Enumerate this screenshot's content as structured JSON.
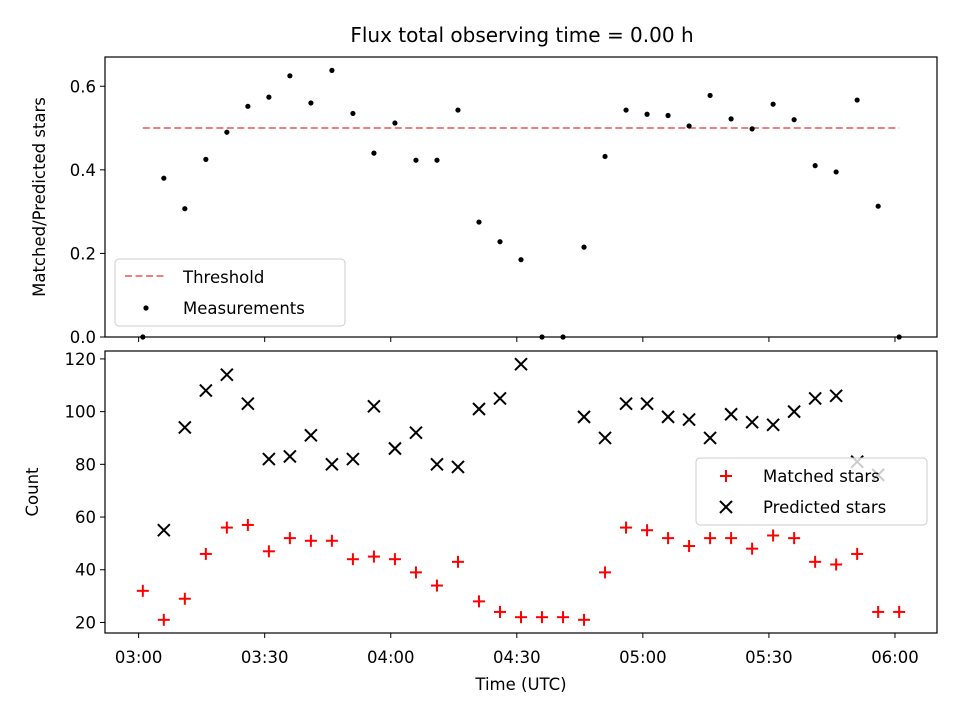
{
  "chart_data": [
    {
      "type": "scatter",
      "title": "Flux total observing time = 0.00 h",
      "xlabel": "",
      "ylabel": "Matched/Predicted stars",
      "ylim": [
        0,
        0.67
      ],
      "yticks": [
        "0.0",
        "0.2",
        "0.4",
        "0.6"
      ],
      "x_range": [
        "02:52",
        "06:10"
      ],
      "legend_position": "lower-left",
      "series": [
        {
          "name": "Threshold",
          "style": "dashed-line",
          "color": "#f08080",
          "x": [
            "03:01",
            "06:01"
          ],
          "y": [
            0.5,
            0.5
          ]
        },
        {
          "name": "Measurements",
          "style": "dot",
          "color": "#000000",
          "x": [
            "03:01",
            "03:06",
            "03:11",
            "03:16",
            "03:21",
            "03:26",
            "03:31",
            "03:36",
            "03:41",
            "03:46",
            "03:51",
            "03:56",
            "04:01",
            "04:06",
            "04:11",
            "04:16",
            "04:21",
            "04:26",
            "04:31",
            "04:36",
            "04:41",
            "04:46",
            "04:51",
            "04:56",
            "05:01",
            "05:06",
            "05:11",
            "05:16",
            "05:21",
            "05:26",
            "05:31",
            "05:36",
            "05:41",
            "05:46",
            "05:51",
            "05:56",
            "06:01"
          ],
          "y": [
            0.0,
            0.38,
            0.307,
            0.425,
            0.49,
            0.552,
            0.574,
            0.625,
            0.56,
            0.638,
            0.535,
            0.44,
            0.512,
            0.423,
            0.423,
            0.543,
            0.275,
            0.228,
            0.185,
            0.0,
            0.0,
            0.215,
            0.432,
            0.543,
            0.533,
            0.53,
            0.505,
            0.578,
            0.522,
            0.498,
            0.557,
            0.52,
            0.41,
            0.395,
            0.567,
            0.313,
            0.0
          ]
        }
      ]
    },
    {
      "type": "scatter",
      "title": "",
      "xlabel": "Time (UTC)",
      "ylabel": "Count",
      "ylim": [
        16,
        123
      ],
      "yticks": [
        "20",
        "40",
        "60",
        "80",
        "100",
        "120"
      ],
      "xticks": [
        "03:00",
        "03:30",
        "04:00",
        "04:30",
        "05:00",
        "05:30",
        "06:00"
      ],
      "x_range": [
        "02:52",
        "06:10"
      ],
      "legend_position": "center-right",
      "series": [
        {
          "name": "Matched stars",
          "style": "plus",
          "color": "#ff0000",
          "x": [
            "03:01",
            "03:06",
            "03:11",
            "03:16",
            "03:21",
            "03:26",
            "03:31",
            "03:36",
            "03:41",
            "03:46",
            "03:51",
            "03:56",
            "04:01",
            "04:06",
            "04:11",
            "04:16",
            "04:21",
            "04:26",
            "04:31",
            "04:36",
            "04:41",
            "04:46",
            "04:51",
            "04:56",
            "05:01",
            "05:06",
            "05:11",
            "05:16",
            "05:21",
            "05:26",
            "05:31",
            "05:36",
            "05:41",
            "05:46",
            "05:51",
            "05:56",
            "06:01"
          ],
          "y": [
            32,
            21,
            29,
            46,
            56,
            57,
            47,
            52,
            51,
            51,
            44,
            45,
            44,
            39,
            34,
            43,
            28,
            24,
            22,
            22,
            22,
            21,
            39,
            56,
            55,
            52,
            49,
            52,
            52,
            48,
            53,
            52,
            43,
            42,
            46,
            24,
            24
          ]
        },
        {
          "name": "Predicted stars",
          "style": "x",
          "color": "#000000",
          "x": [
            "03:06",
            "03:11",
            "03:16",
            "03:21",
            "03:26",
            "03:31",
            "03:36",
            "03:41",
            "03:46",
            "03:51",
            "03:56",
            "04:01",
            "04:06",
            "04:11",
            "04:16",
            "04:21",
            "04:26",
            "04:31",
            "04:46",
            "04:51",
            "04:56",
            "05:01",
            "05:06",
            "05:11",
            "05:16",
            "05:21",
            "05:26",
            "05:31",
            "05:36",
            "05:41",
            "05:46",
            "05:51",
            "05:56"
          ],
          "y": [
            55,
            94,
            108,
            114,
            103,
            82,
            83,
            91,
            80,
            82,
            102,
            86,
            92,
            80,
            79,
            101,
            105,
            118,
            98,
            90,
            103,
            103,
            98,
            97,
            90,
            99,
            96,
            95,
            100,
            105,
            106,
            81,
            76
          ]
        }
      ]
    }
  ]
}
